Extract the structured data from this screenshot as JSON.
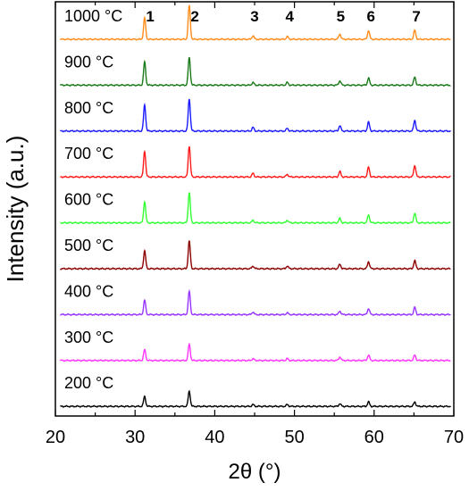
{
  "chart_data": {
    "type": "line",
    "xlabel": "2θ (°)",
    "ylabel": "Intensity (a.u.)",
    "xlim": [
      20,
      70
    ],
    "xticks": [
      20,
      30,
      40,
      50,
      60,
      70
    ],
    "ytick_labels": "none",
    "grid": false,
    "legend": "none",
    "offset_stacked": true,
    "peak_positions_deg": [
      31.2,
      36.8,
      44.8,
      49.1,
      55.7,
      59.3,
      65.1
    ],
    "peak_labels": [
      {
        "label": "1",
        "x": 31.9
      },
      {
        "label": "2",
        "x": 37.5
      },
      {
        "label": "3",
        "x": 45.0
      },
      {
        "label": "4",
        "x": 49.4
      },
      {
        "label": "5",
        "x": 55.8
      },
      {
        "label": "6",
        "x": 59.6
      },
      {
        "label": "7",
        "x": 65.3
      }
    ],
    "series": [
      {
        "name": "1000 °C",
        "color": "#ff8c1a",
        "peak_heights": [
          24,
          38,
          4,
          3,
          6,
          10,
          10
        ],
        "baseline_offset": 0
      },
      {
        "name": "900 °C",
        "color": "#1a7a1a",
        "peak_heights": [
          26,
          31,
          3,
          3,
          5,
          8,
          9
        ],
        "baseline_offset": 1
      },
      {
        "name": "800 °C",
        "color": "#1a1aff",
        "peak_heights": [
          29,
          36,
          4,
          3,
          6,
          10,
          12
        ],
        "baseline_offset": 2
      },
      {
        "name": "700 °C",
        "color": "#ff1a1a",
        "peak_heights": [
          29,
          35,
          4,
          3,
          6,
          11,
          13
        ],
        "baseline_offset": 3
      },
      {
        "name": "600 °C",
        "color": "#33ff33",
        "peak_heights": [
          24,
          34,
          3,
          3,
          5,
          9,
          11
        ],
        "baseline_offset": 4
      },
      {
        "name": "500 °C",
        "color": "#8b0000",
        "peak_heights": [
          20,
          31,
          3,
          3,
          5,
          8,
          9
        ],
        "baseline_offset": 5
      },
      {
        "name": "400 °C",
        "color": "#9933ff",
        "peak_heights": [
          16,
          26,
          3,
          2,
          4,
          7,
          8
        ],
        "baseline_offset": 6
      },
      {
        "name": "300 °C",
        "color": "#ff33ff",
        "peak_heights": [
          12,
          18,
          2,
          2,
          4,
          6,
          6
        ],
        "baseline_offset": 7
      },
      {
        "name": "200 °C",
        "color": "#000000",
        "peak_heights": [
          11,
          17,
          2,
          2,
          3,
          5,
          5
        ],
        "baseline_offset": 8
      }
    ]
  }
}
